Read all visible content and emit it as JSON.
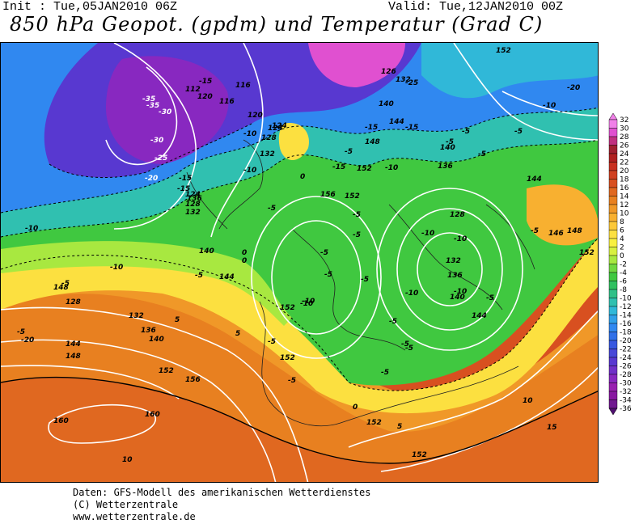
{
  "header": {
    "init": "Init : Tue,05JAN2010 06Z",
    "valid": "Valid: Tue,12JAN2010 00Z",
    "title": "850 hPa Geopot. (gpdm) und Temperatur (Grad C)"
  },
  "map": {
    "geopotential_labels": [
      "112",
      "116",
      "116",
      "120",
      "124",
      "128",
      "132",
      "136",
      "140",
      "144",
      "148",
      "152",
      "156",
      "160",
      "128",
      "132",
      "136",
      "140",
      "144",
      "148",
      "152",
      "156",
      "160",
      "124",
      "126",
      "132",
      "140",
      "144",
      "148",
      "152",
      "128",
      "132",
      "136",
      "140",
      "144",
      "146",
      "148",
      "152",
      "152",
      "152",
      "152",
      "152",
      "152",
      "136",
      "140",
      "120",
      "124",
      "128",
      "132",
      "144"
    ],
    "temperature_labels": [
      "-35",
      "-30",
      "-35",
      "-30",
      "-25",
      "-20",
      "-15",
      "-15",
      "-10",
      "-10",
      "-5",
      "-5",
      "0",
      "0",
      "5",
      "-5",
      "-5",
      "-10",
      "-10",
      "-5",
      "-5",
      "-5",
      "-5",
      "-10",
      "-15",
      "-5",
      "-10",
      "-15",
      "-5",
      "-10",
      "-20",
      "-5",
      "-5",
      "-10",
      "-10",
      "-5",
      "-5",
      "-10",
      "-5",
      "-10",
      "-15",
      "-20",
      "-5",
      "0",
      "5",
      "10",
      "0",
      "-5",
      "5",
      "10",
      "15",
      "-25",
      "-15",
      "-10",
      "-5",
      "-5",
      "-5",
      "-5",
      "-5"
    ]
  },
  "colors": {
    "c32": "#f080e8",
    "c30": "#e050d0",
    "c28": "#c03080",
    "c26": "#a02030",
    "c24": "#b02020",
    "c22": "#c83020",
    "c20": "#d04020",
    "c18": "#d85020",
    "c16": "#e06820",
    "c14": "#e88020",
    "c12": "#f09828",
    "c10": "#f8b030",
    "c8": "#fcc838",
    "c6": "#fce040",
    "c4": "#f8f040",
    "c2": "#d8f040",
    "c0": "#a8e840",
    "cm2": "#70d840",
    "cm4": "#40c840",
    "cm6": "#30c060",
    "cm8": "#30c088",
    "cm10": "#30c0b0",
    "cm12": "#30b8d8",
    "cm14": "#30a0e8",
    "cm16": "#3088f0",
    "cm18": "#3070e8",
    "cm20": "#3858e0",
    "cm22": "#4848d8",
    "cm24": "#5838d0",
    "cm26": "#7030c8",
    "cm28": "#8828c0",
    "cm30": "#9820b0",
    "cm32": "#8818a0",
    "cm34": "#701890",
    "cm36": "#501070"
  },
  "scale": {
    "ticks": [
      "32",
      "30",
      "28",
      "26",
      "24",
      "22",
      "20",
      "18",
      "16",
      "14",
      "12",
      "10",
      "8",
      "6",
      "4",
      "2",
      "0",
      "-2",
      "-4",
      "-6",
      "-8",
      "-10",
      "-12",
      "-14",
      "-16",
      "-18",
      "-20",
      "-22",
      "-24",
      "-26",
      "-28",
      "-30",
      "-32",
      "-34",
      "-36"
    ]
  },
  "footer": {
    "line1": "Daten: GFS-Modell des amerikanischen Wetterdienstes",
    "line2": "(C) Wetterzentrale",
    "line3": "www.wetterzentrale.de"
  }
}
